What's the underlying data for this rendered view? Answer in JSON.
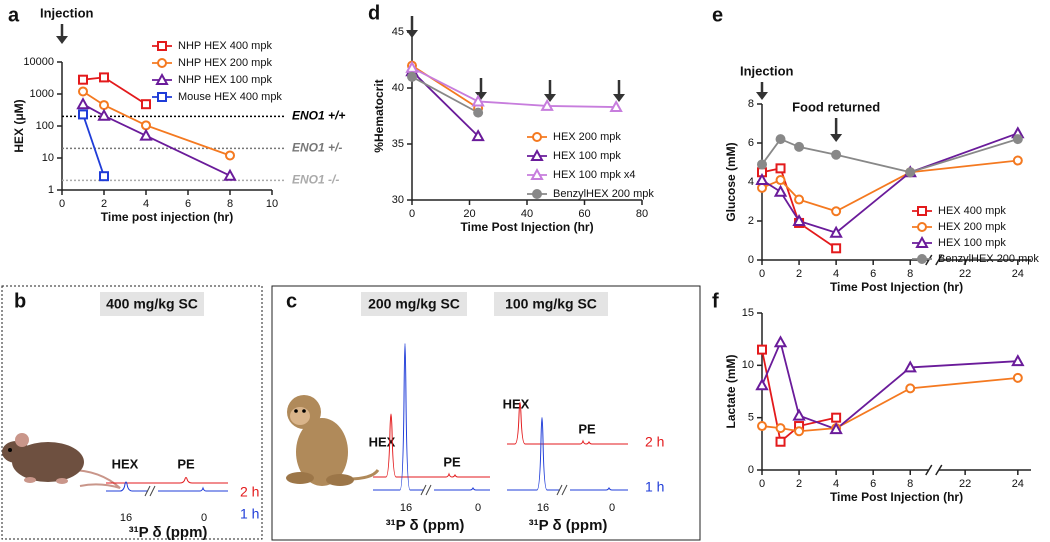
{
  "chart_data": [
    {
      "type": "line",
      "panel": "a",
      "xlabel": "Time post injection (hr)",
      "ylabel": "HEX (μM)",
      "log_y": true,
      "xlim": [
        0,
        10
      ],
      "xticks": [
        0,
        2,
        4,
        6,
        8,
        10
      ],
      "ylim": [
        1,
        10000
      ],
      "yticks": [
        1,
        10,
        100,
        1000,
        10000
      ],
      "legend": "upper right",
      "annotations": [
        {
          "text": "Injection",
          "x": 0
        }
      ],
      "reference_lines": [
        {
          "label": "ENO1 +/+",
          "value": 200,
          "color": "#000000"
        },
        {
          "label": "ENO1 +/-",
          "value": 20,
          "color": "#777777"
        },
        {
          "label": "ENO1 -/-",
          "value": 2,
          "color": "#aaaaaa"
        }
      ],
      "series": [
        {
          "name": "NHP HEX 400 mpk",
          "color": "#e31a1c",
          "marker": "square",
          "x": [
            1,
            2,
            4
          ],
          "values": [
            2800,
            3300,
            480
          ]
        },
        {
          "name": "NHP HEX 200 mpk",
          "color": "#f47920",
          "marker": "circle",
          "x": [
            1,
            2,
            4,
            8
          ],
          "values": [
            1200,
            450,
            105,
            12
          ]
        },
        {
          "name": "NHP HEX 100 mpk",
          "color": "#6a1b9a",
          "marker": "triangle",
          "x": [
            1,
            2,
            4,
            8
          ],
          "values": [
            480,
            210,
            50,
            2.8
          ]
        },
        {
          "name": "Mouse HEX 400 mpk",
          "color": "#1f3cd8",
          "marker": "square",
          "x": [
            1,
            2
          ],
          "values": [
            230,
            2.7
          ]
        }
      ]
    },
    {
      "type": "line",
      "panel": "d",
      "xlabel": "Time Post Injection (hr)",
      "ylabel": "%Hematocrit",
      "xlim": [
        0,
        80
      ],
      "xticks": [
        0,
        20,
        40,
        60,
        80
      ],
      "ylim": [
        30,
        45
      ],
      "yticks": [
        30,
        35,
        40,
        45
      ],
      "legend": "lower right",
      "arrows": [
        0,
        24,
        48,
        72
      ],
      "series": [
        {
          "name": "HEX 200 mpk",
          "color": "#f47920",
          "marker": "circle",
          "x": [
            0,
            23
          ],
          "values": [
            42,
            38.2
          ]
        },
        {
          "name": "HEX 100 mpk",
          "color": "#6a1b9a",
          "marker": "triangle",
          "x": [
            0,
            23
          ],
          "values": [
            41.5,
            35.7
          ]
        },
        {
          "name": "HEX 100 mpk x4",
          "color": "#c77ddd",
          "marker": "triangle",
          "x": [
            0,
            23,
            47,
            71
          ],
          "values": [
            41.8,
            38.8,
            38.4,
            38.3
          ]
        },
        {
          "name": "BenzylHEX 200 mpk",
          "color": "#888888",
          "marker": "circle",
          "filled": true,
          "x": [
            0,
            23
          ],
          "values": [
            41,
            37.8
          ]
        }
      ]
    },
    {
      "type": "line",
      "panel": "e",
      "xlabel": "Time Post Injection (hr)",
      "ylabel": "Glucose (mM)",
      "xlim": [
        0,
        24.5
      ],
      "xbreak": [
        9,
        21
      ],
      "xticks": [
        0,
        2,
        4,
        6,
        8,
        22,
        24
      ],
      "ylim": [
        0,
        8
      ],
      "yticks": [
        0,
        2,
        4,
        6,
        8
      ],
      "legend": "lower right",
      "annotations": [
        {
          "text": "Injection",
          "x": 0
        },
        {
          "text": "Food returned",
          "x": 4
        }
      ],
      "series": [
        {
          "name": "HEX 400 mpk",
          "color": "#e31a1c",
          "marker": "square",
          "x": [
            0,
            1,
            2,
            4
          ],
          "values": [
            4.5,
            4.7,
            1.9,
            0.6
          ]
        },
        {
          "name": "HEX 200 mpk",
          "color": "#f47920",
          "marker": "circle",
          "x": [
            0,
            1,
            2,
            4,
            8,
            24
          ],
          "values": [
            3.7,
            4.1,
            3.1,
            2.5,
            4.5,
            5.1
          ]
        },
        {
          "name": "HEX 100 mpk",
          "color": "#6a1b9a",
          "marker": "triangle",
          "x": [
            0,
            1,
            2,
            4,
            8,
            24
          ],
          "values": [
            4.1,
            3.5,
            2.0,
            1.4,
            4.5,
            6.5
          ]
        },
        {
          "name": "BenzylHEX 200 mpk",
          "color": "#888888",
          "marker": "circle",
          "filled": true,
          "x": [
            0,
            1,
            2,
            4,
            8,
            24
          ],
          "values": [
            4.9,
            6.2,
            5.8,
            5.4,
            4.5,
            6.2
          ]
        }
      ]
    },
    {
      "type": "line",
      "panel": "f",
      "xlabel": "Time Post Injection (hr)",
      "ylabel": "Lactate (mM)",
      "xlim": [
        0,
        24.5
      ],
      "xbreak": [
        9,
        21
      ],
      "xticks": [
        0,
        2,
        4,
        6,
        8,
        22,
        24
      ],
      "ylim": [
        0,
        15
      ],
      "yticks": [
        0,
        5,
        10,
        15
      ],
      "series": [
        {
          "color": "#e31a1c",
          "marker": "square",
          "x": [
            0,
            1,
            2,
            4
          ],
          "values": [
            11.5,
            2.7,
            4.2,
            5.0
          ]
        },
        {
          "color": "#f47920",
          "marker": "circle",
          "x": [
            0,
            1,
            2,
            4,
            8,
            24
          ],
          "values": [
            4.2,
            4.0,
            3.7,
            4.0,
            7.8,
            8.8
          ]
        },
        {
          "color": "#6a1b9a",
          "marker": "triangle",
          "x": [
            0,
            1,
            2,
            4,
            8,
            24
          ],
          "values": [
            8.1,
            12.2,
            5.2,
            3.9,
            9.8,
            10.4
          ]
        }
      ]
    }
  ],
  "spectra": {
    "b": {
      "panel": "b",
      "times": [
        "2 h",
        "1 h"
      ],
      "groups": [
        {
          "dose": "400 mg/kg SC",
          "peaks": [
            "HEX",
            "PE"
          ],
          "ticks": [
            16,
            0
          ],
          "axis_label": "³¹P δ (ppm)"
        }
      ]
    },
    "c": {
      "panel": "c",
      "times": [
        "2 h",
        "1 h"
      ],
      "groups": [
        {
          "dose": "200 mg/kg SC",
          "peaks": [
            "HEX",
            "PE"
          ],
          "ticks": [
            16,
            0
          ],
          "axis_label": "³¹P δ (ppm)"
        },
        {
          "dose": "100 mg/kg SC",
          "peaks": [
            "HEX",
            "PE"
          ],
          "ticks": [
            16,
            0
          ],
          "axis_label": "³¹P δ (ppm)"
        }
      ]
    }
  }
}
